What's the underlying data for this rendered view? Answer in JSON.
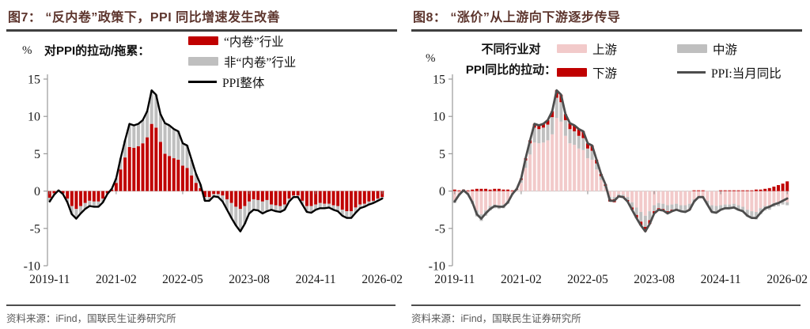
{
  "figures": [
    {
      "title": "图7： “反内卷”政策下，PPI 同比增速发生改善",
      "unit_label": "%",
      "annotation_line1": "对PPI的拉动/拖累：",
      "annotation_line2": "",
      "source": "资料来源：iFind，国联民生证券研究所",
      "legend": [
        {
          "label": "“内卷”行业",
          "color": "#c00000",
          "swatch": "box"
        },
        {
          "label": "非“内卷”行业",
          "color": "#bfbfbf",
          "swatch": "box"
        },
        {
          "label": "PPI整体",
          "color": "#000000",
          "swatch": "line"
        }
      ]
    },
    {
      "title": "图8： “涨价”从上游向下游逐步传导",
      "unit_label": "%",
      "annotation_line1": "不同行业对",
      "annotation_line2": "PPI同比的拉动：",
      "source": "资料来源：iFind，国联民生证券研究所",
      "legend": [
        {
          "label": "上游",
          "color": "#f2caca",
          "swatch": "box"
        },
        {
          "label": "中游",
          "color": "#bfbfbf",
          "swatch": "box"
        },
        {
          "label": "下游",
          "color": "#c00000",
          "swatch": "box"
        },
        {
          "label": "PPI:当月同比",
          "color": "#4d4d4d",
          "swatch": "line"
        }
      ]
    }
  ],
  "chart_data": [
    {
      "type": "bar",
      "title": "图7： “反内卷”政策下，PPI 同比增速发生改善",
      "stacked": true,
      "ylabel": "%",
      "ylim": [
        -10,
        15
      ],
      "y_ticks": [
        15,
        10,
        5,
        0,
        -5,
        -10
      ],
      "grid": false,
      "legend_position": "top",
      "x_ticks": [
        "2019-11",
        "2021-02",
        "2022-05",
        "2023-08",
        "2024-11",
        "2026-02"
      ],
      "x": [
        "2019-11",
        "2019-12",
        "2020-01",
        "2020-02",
        "2020-03",
        "2020-04",
        "2020-05",
        "2020-06",
        "2020-07",
        "2020-08",
        "2020-09",
        "2020-10",
        "2020-11",
        "2020-12",
        "2021-01",
        "2021-02",
        "2021-03",
        "2021-04",
        "2021-05",
        "2021-06",
        "2021-07",
        "2021-08",
        "2021-09",
        "2021-10",
        "2021-11",
        "2021-12",
        "2022-01",
        "2022-02",
        "2022-03",
        "2022-04",
        "2022-05",
        "2022-06",
        "2022-07",
        "2022-08",
        "2022-09",
        "2022-10",
        "2022-11",
        "2022-12",
        "2023-01",
        "2023-02",
        "2023-03",
        "2023-04",
        "2023-05",
        "2023-06",
        "2023-07",
        "2023-08",
        "2023-09",
        "2023-10",
        "2023-11",
        "2023-12",
        "2024-01",
        "2024-02",
        "2024-03",
        "2024-04",
        "2024-05",
        "2024-06",
        "2024-07",
        "2024-08",
        "2024-09",
        "2024-10",
        "2024-11",
        "2024-12",
        "2025-01",
        "2025-02",
        "2025-03",
        "2025-04",
        "2025-05",
        "2025-06",
        "2025-07",
        "2025-08",
        "2025-09",
        "2025-10",
        "2025-11",
        "2025-12",
        "2026-01",
        "2026-02"
      ],
      "series": [
        {
          "name": "“内卷”行业",
          "type": "bar",
          "color": "#c00000",
          "values": [
            -0.9,
            -0.3,
            0.1,
            -0.3,
            -1.0,
            -2.0,
            -2.4,
            -2.0,
            -1.6,
            -1.3,
            -1.4,
            -1.4,
            -1.0,
            -0.3,
            0.2,
            1.1,
            2.9,
            4.5,
            5.9,
            5.8,
            6.0,
            6.4,
            7.2,
            9.0,
            8.5,
            6.6,
            5.0,
            4.7,
            4.4,
            4.2,
            3.4,
            3.1,
            2.1,
            1.1,
            0.4,
            -0.8,
            -0.8,
            -0.4,
            -0.4,
            -0.6,
            -1.1,
            -1.6,
            -2.1,
            -2.4,
            -2.0,
            -1.4,
            -1.1,
            -1.2,
            -1.4,
            -1.2,
            -1.8,
            -1.9,
            -2.0,
            -1.8,
            -1.0,
            -0.6,
            -0.6,
            -1.3,
            -2.0,
            -2.0,
            -1.8,
            -1.6,
            -1.7,
            -1.7,
            -1.9,
            -2.0,
            -2.5,
            -2.7,
            -2.7,
            -2.2,
            -1.8,
            -1.7,
            -1.4,
            -1.3,
            -1.0,
            -0.8
          ]
        },
        {
          "name": "非“内卷”行业",
          "type": "bar",
          "color": "#bfbfbf",
          "values": [
            -0.5,
            -0.2,
            0.0,
            -0.1,
            -0.5,
            -1.1,
            -1.3,
            -1.0,
            -0.8,
            -0.7,
            -0.7,
            -0.7,
            -0.5,
            -0.1,
            0.1,
            0.6,
            1.5,
            2.3,
            3.1,
            3.0,
            3.0,
            3.1,
            3.5,
            4.5,
            4.4,
            3.7,
            4.1,
            4.1,
            3.9,
            3.8,
            3.0,
            3.0,
            2.1,
            1.2,
            0.5,
            -0.5,
            -0.5,
            -0.3,
            -0.4,
            -0.8,
            -1.4,
            -2.0,
            -2.5,
            -3.0,
            -2.4,
            -1.6,
            -1.4,
            -1.4,
            -1.6,
            -1.5,
            -0.7,
            -0.8,
            -0.8,
            -0.7,
            -0.4,
            -0.2,
            -0.2,
            -0.5,
            -0.8,
            -0.9,
            -0.7,
            -0.7,
            -0.6,
            -0.5,
            -0.6,
            -0.7,
            -0.8,
            -0.9,
            -0.9,
            -0.7,
            -0.5,
            -0.4,
            -0.4,
            -0.3,
            -0.3,
            -0.2
          ]
        },
        {
          "name": "PPI整体",
          "type": "line",
          "color": "#000000",
          "width": 2.4,
          "values": [
            -1.4,
            -0.5,
            0.1,
            -0.4,
            -1.5,
            -3.1,
            -3.7,
            -3.0,
            -2.4,
            -2.0,
            -2.1,
            -2.1,
            -1.5,
            -0.4,
            0.3,
            1.7,
            4.4,
            6.8,
            9.0,
            8.8,
            9.0,
            9.5,
            10.7,
            13.5,
            12.9,
            10.3,
            9.1,
            8.8,
            8.3,
            8.0,
            6.4,
            6.1,
            4.2,
            2.3,
            0.9,
            -1.3,
            -1.3,
            -0.7,
            -0.8,
            -1.4,
            -2.5,
            -3.6,
            -4.6,
            -5.4,
            -4.4,
            -3.0,
            -2.5,
            -2.6,
            -3.0,
            -2.7,
            -2.5,
            -2.7,
            -2.8,
            -2.5,
            -1.4,
            -0.8,
            -0.8,
            -1.8,
            -2.8,
            -2.9,
            -2.5,
            -2.3,
            -2.3,
            -2.2,
            -2.5,
            -2.7,
            -3.3,
            -3.6,
            -3.6,
            -2.9,
            -2.3,
            -2.1,
            -1.8,
            -1.6,
            -1.3,
            -1.0
          ]
        }
      ]
    },
    {
      "type": "bar",
      "title": "图8： “涨价”从上游向下游逐步传导",
      "stacked": true,
      "ylabel": "%",
      "ylim": [
        -10,
        15
      ],
      "y_ticks": [
        15,
        10,
        5,
        0,
        -5,
        -10
      ],
      "grid": false,
      "legend_position": "top",
      "x_ticks": [
        "2019-11",
        "2021-02",
        "2022-05",
        "2023-08",
        "2024-11",
        "2026-02"
      ],
      "x": [
        "2019-11",
        "2019-12",
        "2020-01",
        "2020-02",
        "2020-03",
        "2020-04",
        "2020-05",
        "2020-06",
        "2020-07",
        "2020-08",
        "2020-09",
        "2020-10",
        "2020-11",
        "2020-12",
        "2021-01",
        "2021-02",
        "2021-03",
        "2021-04",
        "2021-05",
        "2021-06",
        "2021-07",
        "2021-08",
        "2021-09",
        "2021-10",
        "2021-11",
        "2021-12",
        "2022-01",
        "2022-02",
        "2022-03",
        "2022-04",
        "2022-05",
        "2022-06",
        "2022-07",
        "2022-08",
        "2022-09",
        "2022-10",
        "2022-11",
        "2022-12",
        "2023-01",
        "2023-02",
        "2023-03",
        "2023-04",
        "2023-05",
        "2023-06",
        "2023-07",
        "2023-08",
        "2023-09",
        "2023-10",
        "2023-11",
        "2023-12",
        "2024-01",
        "2024-02",
        "2024-03",
        "2024-04",
        "2024-05",
        "2024-06",
        "2024-07",
        "2024-08",
        "2024-09",
        "2024-10",
        "2024-11",
        "2024-12",
        "2025-01",
        "2025-02",
        "2025-03",
        "2025-04",
        "2025-05",
        "2025-06",
        "2025-07",
        "2025-08",
        "2025-09",
        "2025-10",
        "2025-11",
        "2025-12",
        "2026-01",
        "2026-02"
      ],
      "series": [
        {
          "name": "上游",
          "type": "bar",
          "color": "#f2caca",
          "values": [
            -1.2,
            -0.4,
            -0.1,
            -0.4,
            -1.3,
            -2.6,
            -3.1,
            -2.6,
            -2.0,
            -1.8,
            -1.9,
            -1.8,
            -1.3,
            -0.4,
            0.1,
            1.1,
            3.1,
            4.9,
            6.5,
            6.4,
            6.5,
            6.8,
            7.6,
            9.8,
            9.3,
            7.4,
            6.4,
            6.2,
            5.7,
            5.5,
            4.4,
            4.2,
            2.9,
            1.5,
            0.5,
            -0.8,
            -0.8,
            -0.4,
            -0.5,
            -0.8,
            -1.5,
            -2.2,
            -2.8,
            -3.3,
            -2.7,
            -1.9,
            -1.6,
            -1.7,
            -1.9,
            -1.8,
            -1.7,
            -1.9,
            -1.9,
            -1.7,
            -1.1,
            -0.7,
            -0.7,
            -1.3,
            -1.9,
            -2.0,
            -1.9,
            -1.8,
            -1.8,
            -1.7,
            -1.9,
            -2.1,
            -2.5,
            -2.7,
            -2.8,
            -2.3,
            -2.0,
            -1.9,
            -1.6,
            -1.5,
            -1.4,
            -1.5
          ]
        },
        {
          "name": "中游",
          "type": "bar",
          "color": "#bfbfbf",
          "values": [
            -0.4,
            -0.2,
            0.0,
            -0.1,
            -0.4,
            -0.8,
            -0.9,
            -0.7,
            -0.6,
            -0.5,
            -0.5,
            -0.5,
            -0.4,
            -0.1,
            0.1,
            0.4,
            1.0,
            1.5,
            2.0,
            1.9,
            2.0,
            2.1,
            2.3,
            2.7,
            2.6,
            2.1,
            1.9,
            1.8,
            1.7,
            1.6,
            1.3,
            1.2,
            0.8,
            0.5,
            0.2,
            -0.3,
            -0.3,
            -0.2,
            -0.2,
            -0.4,
            -0.7,
            -1.0,
            -1.3,
            -1.5,
            -1.2,
            -0.8,
            -0.7,
            -0.7,
            -0.8,
            -0.7,
            -0.7,
            -0.7,
            -0.8,
            -0.7,
            -0.4,
            -0.2,
            -0.2,
            -0.5,
            -0.8,
            -0.8,
            -0.7,
            -0.6,
            -0.6,
            -0.6,
            -0.7,
            -0.7,
            -0.9,
            -1.0,
            -1.0,
            -0.8,
            -0.6,
            -0.6,
            -0.5,
            -0.5,
            -0.4,
            -0.4
          ]
        },
        {
          "name": "下游",
          "type": "bar",
          "color": "#c00000",
          "values": [
            0.2,
            0.1,
            0.2,
            0.1,
            0.2,
            0.3,
            0.3,
            0.3,
            0.2,
            0.3,
            0.3,
            0.2,
            0.2,
            0.1,
            0.1,
            0.2,
            0.3,
            0.4,
            0.5,
            0.5,
            0.5,
            0.6,
            0.8,
            1.0,
            1.0,
            0.8,
            0.8,
            0.8,
            0.9,
            0.9,
            0.7,
            0.7,
            0.5,
            0.3,
            0.2,
            -0.3,
            -0.4,
            -0.2,
            -0.1,
            -0.2,
            -0.3,
            -0.4,
            -0.5,
            -0.6,
            -0.5,
            -0.3,
            -0.2,
            -0.2,
            -0.3,
            -0.2,
            -0.1,
            -0.1,
            -0.1,
            -0.1,
            0.1,
            0.1,
            0.1,
            0.0,
            -0.1,
            -0.1,
            0.1,
            0.1,
            0.1,
            0.1,
            0.1,
            0.1,
            0.1,
            0.1,
            0.2,
            0.2,
            0.3,
            0.4,
            0.6,
            0.8,
            1.0,
            1.3
          ]
        },
        {
          "name": "PPI:当月同比",
          "type": "line",
          "color": "#4d4d4d",
          "width": 2.8,
          "values": [
            -1.4,
            -0.5,
            0.1,
            -0.4,
            -1.5,
            -3.1,
            -3.7,
            -3.0,
            -2.4,
            -2.0,
            -2.1,
            -2.1,
            -1.5,
            -0.4,
            0.3,
            1.7,
            4.4,
            6.8,
            9.0,
            8.8,
            9.0,
            9.5,
            10.7,
            13.5,
            12.9,
            10.3,
            9.1,
            8.8,
            8.3,
            8.0,
            6.4,
            6.1,
            4.2,
            2.3,
            0.9,
            -1.3,
            -1.3,
            -0.7,
            -0.8,
            -1.4,
            -2.5,
            -3.6,
            -4.6,
            -5.4,
            -4.4,
            -3.0,
            -2.5,
            -2.6,
            -3.0,
            -2.7,
            -2.5,
            -2.7,
            -2.8,
            -2.5,
            -1.4,
            -0.8,
            -0.8,
            -1.8,
            -2.8,
            -2.9,
            -2.5,
            -2.3,
            -2.3,
            -2.2,
            -2.5,
            -2.7,
            -3.3,
            -3.6,
            -3.6,
            -2.9,
            -2.3,
            -2.1,
            -1.8,
            -1.6,
            -1.3,
            -1.0
          ]
        }
      ]
    }
  ]
}
